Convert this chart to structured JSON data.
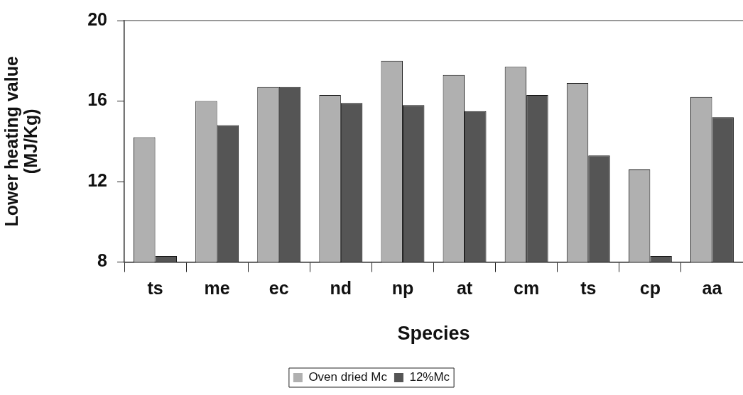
{
  "chart_data": {
    "type": "bar",
    "xlabel": "Species",
    "ylabel": "Lower heating value (MJ/Kg)",
    "categories": [
      "ts",
      "me",
      "ec",
      "nd",
      "np",
      "at",
      "cm",
      "ts",
      "cp",
      "aa"
    ],
    "series": [
      {
        "name": "Oven dried Mc",
        "color": "#b0b0b0",
        "values": [
          14.2,
          16.0,
          16.7,
          16.3,
          18.0,
          17.3,
          17.7,
          16.9,
          12.6,
          16.2
        ]
      },
      {
        "name": "12%Mc",
        "color": "#555555",
        "values": [
          8.3,
          14.8,
          16.7,
          15.9,
          15.8,
          15.5,
          16.3,
          13.3,
          8.3,
          15.2
        ]
      }
    ],
    "ylim": [
      8,
      20
    ],
    "yticks": [
      8,
      12,
      16,
      20
    ],
    "grid": false,
    "legend": "bottom"
  }
}
